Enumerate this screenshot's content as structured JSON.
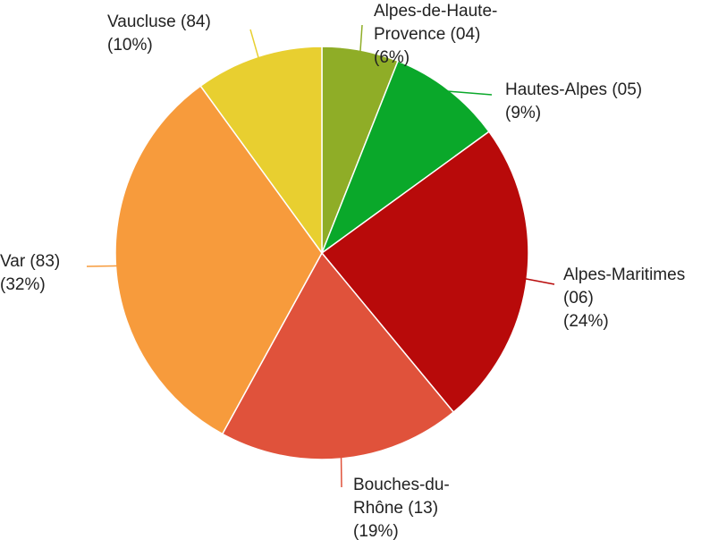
{
  "chart_data": {
    "type": "pie",
    "categories": [
      "Alpes-de-Haute-Provence (04)",
      "Hautes-Alpes (05)",
      "Alpes-Maritimes (06)",
      "Bouches-du-Rhône (13)",
      "Var (83)",
      "Vaucluse (84)"
    ],
    "values": [
      6,
      9,
      24,
      19,
      32,
      10
    ],
    "value_labels": [
      "(6%)",
      "(9%)",
      "(24%)",
      "(19%)",
      "(32%)",
      "(10%)"
    ],
    "colors": [
      "#8fad27",
      "#0aa82a",
      "#b80a0a",
      "#e0523b",
      "#f79b3c",
      "#e8cf30"
    ]
  }
}
